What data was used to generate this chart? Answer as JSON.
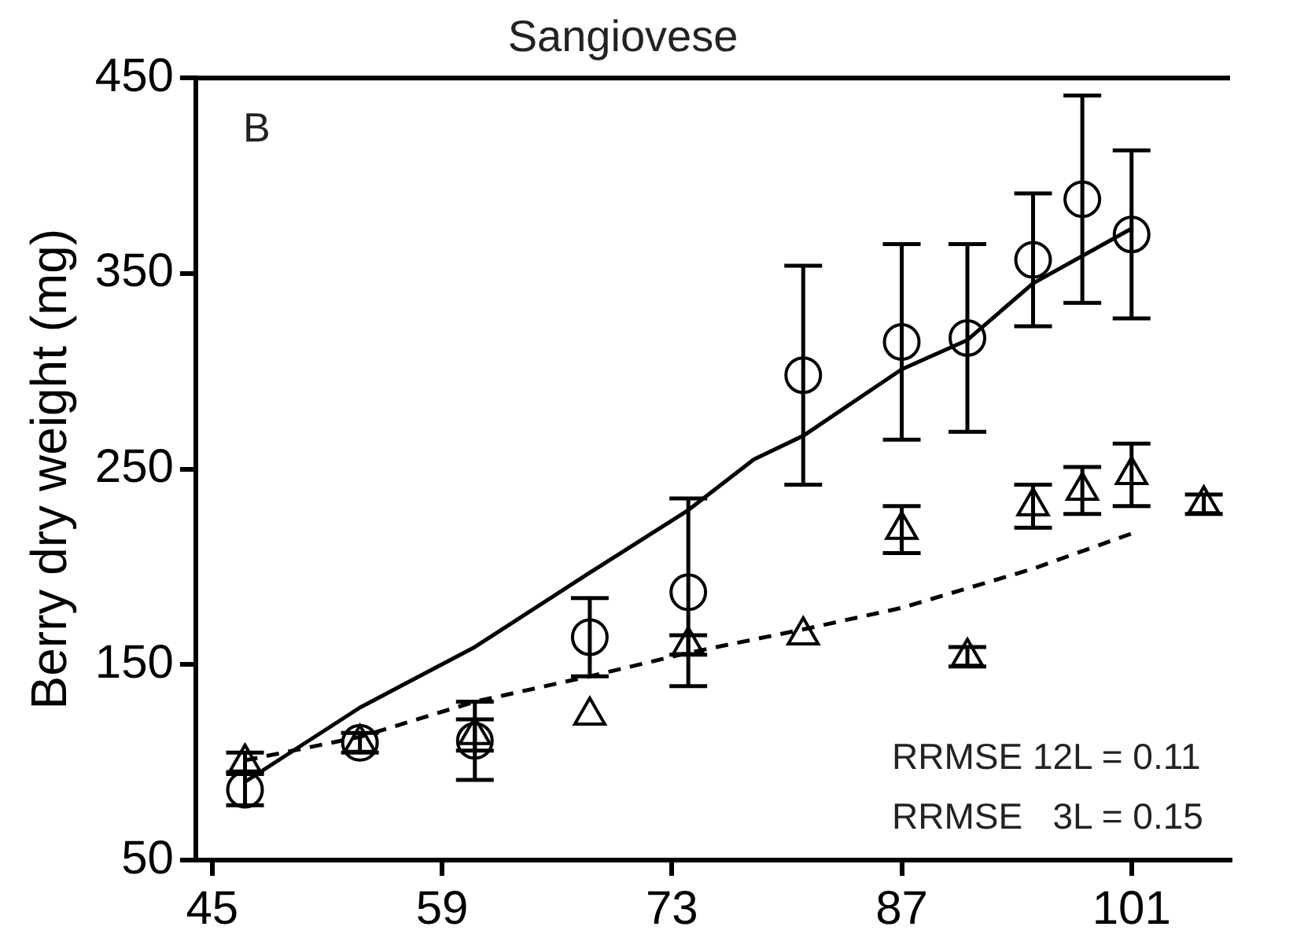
{
  "chart_data": {
    "type": "scatter",
    "title": "Sangiovese",
    "ylabel": "Berry dry weight (mg)",
    "xlim": [
      44,
      107
    ],
    "xticks": [
      45,
      59,
      73,
      87,
      101
    ],
    "ylim": [
      50,
      450
    ],
    "yticks": [
      50,
      150,
      250,
      350,
      450
    ],
    "annotations": [
      "B",
      "RRMSE 12L = 0.11",
      "RRMSE   3L = 0.15"
    ],
    "series": [
      {
        "type": "scatter",
        "marker": "circle",
        "color": "#000000",
        "x": [
          47,
          54,
          61,
          68,
          74,
          81,
          87,
          91,
          95,
          98,
          101
        ],
        "values": [
          86,
          110,
          111,
          164,
          187,
          298,
          315,
          317,
          357,
          388,
          370
        ],
        "errors": [
          8,
          null,
          20,
          20,
          48,
          56,
          50,
          48,
          34,
          53,
          43
        ]
      },
      {
        "type": "scatter",
        "marker": "triangle",
        "color": "#000000",
        "x": [
          47,
          54,
          61,
          68,
          74,
          81,
          87,
          91,
          95,
          98,
          101,
          105.4
        ],
        "values": [
          100,
          110,
          114,
          124,
          160,
          165,
          219,
          154,
          231,
          239,
          247,
          232
        ],
        "errors": [
          5,
          5,
          8,
          null,
          5,
          null,
          12,
          5,
          11,
          12,
          16,
          5
        ]
      },
      {
        "type": "line",
        "marker": "none",
        "line_style": "solid",
        "color": "#000000",
        "x": [
          47,
          54,
          61,
          68,
          74,
          78,
          81,
          87,
          91,
          95,
          101
        ],
        "values": [
          90,
          128,
          159,
          197,
          229,
          255,
          267,
          301,
          316,
          345,
          373
        ]
      },
      {
        "type": "line",
        "marker": "none",
        "line_style": "dashed",
        "color": "#000000",
        "x": [
          47,
          54,
          61,
          68,
          74,
          81,
          87,
          91,
          95,
          101
        ],
        "values": [
          101,
          113,
          131,
          144,
          156,
          168,
          179,
          189,
          199,
          217
        ]
      }
    ]
  }
}
